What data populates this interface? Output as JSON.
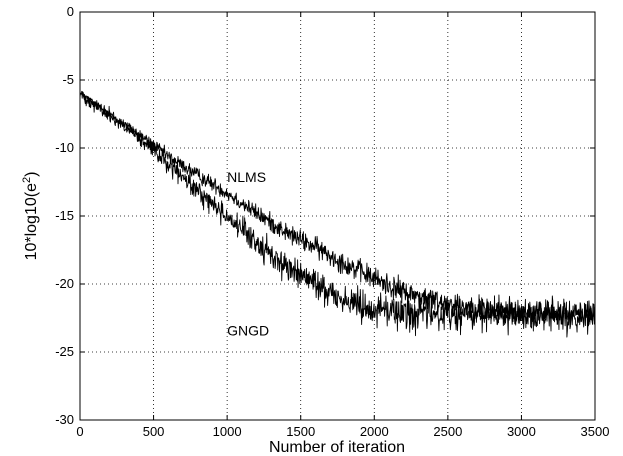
{
  "chart_data": {
    "type": "line",
    "title": "",
    "xlabel": "Number of iteration",
    "ylabel": "10*log10(e",
    "ylabel_sup": "2",
    "ylabel_close": ")",
    "xlim": [
      0,
      3500
    ],
    "ylim": [
      -30,
      0
    ],
    "xticks": [
      0,
      500,
      1000,
      1500,
      2000,
      2500,
      3000,
      3500
    ],
    "yticks": [
      0,
      -5,
      -10,
      -15,
      -20,
      -25,
      -30
    ],
    "grid": true,
    "legend": "none",
    "series": [
      {
        "name": "NLMS",
        "label_at": [
          1000,
          -12.5
        ],
        "color": "#000000",
        "noise_amplitude_db": 0.9,
        "x": [
          0,
          200,
          400,
          600,
          800,
          1000,
          1200,
          1400,
          1600,
          1800,
          2000,
          2200,
          2400,
          2600,
          2800,
          3000,
          3200,
          3500
        ],
        "y": [
          -6.0,
          -7.5,
          -9.0,
          -10.6,
          -12.0,
          -13.3,
          -14.8,
          -16.2,
          -17.3,
          -18.5,
          -19.6,
          -20.6,
          -21.2,
          -21.6,
          -21.9,
          -22.1,
          -22.2,
          -22.3
        ]
      },
      {
        "name": "GNGD",
        "label_at": [
          1000,
          -23.8
        ],
        "color": "#000000",
        "noise_amplitude_db": 1.3,
        "x": [
          0,
          200,
          400,
          600,
          800,
          1000,
          1200,
          1400,
          1600,
          1800,
          2000,
          2200,
          2400,
          2600,
          2800,
          3000,
          3200,
          3500
        ],
        "y": [
          -6.0,
          -7.6,
          -9.3,
          -11.2,
          -13.2,
          -15.0,
          -17.0,
          -18.7,
          -20.0,
          -21.2,
          -21.8,
          -22.1,
          -22.2,
          -22.3,
          -22.3,
          -22.3,
          -22.4,
          -22.4
        ]
      }
    ]
  }
}
